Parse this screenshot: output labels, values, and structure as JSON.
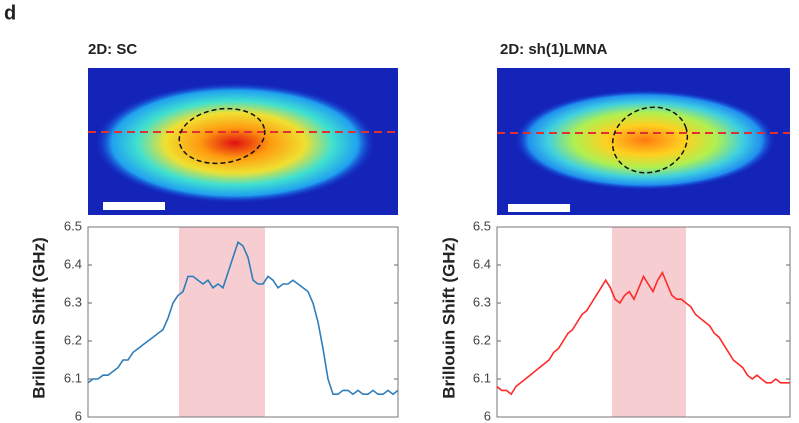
{
  "panel_label": "d",
  "chart_data": [
    {
      "type": "line",
      "title": "2D: SC",
      "y_label": "Brillouin Shift (GHz)",
      "color": "#2f7ebc",
      "values": [
        6.09,
        6.1,
        6.1,
        6.11,
        6.11,
        6.12,
        6.13,
        6.15,
        6.15,
        6.17,
        6.18,
        6.19,
        6.2,
        6.21,
        6.22,
        6.23,
        6.26,
        6.3,
        6.32,
        6.33,
        6.37,
        6.37,
        6.36,
        6.35,
        6.36,
        6.34,
        6.35,
        6.34,
        6.38,
        6.42,
        6.46,
        6.45,
        6.42,
        6.36,
        6.35,
        6.35,
        6.37,
        6.36,
        6.34,
        6.35,
        6.35,
        6.36,
        6.35,
        6.34,
        6.33,
        6.3,
        6.25,
        6.18,
        6.1,
        6.06,
        6.06,
        6.07,
        6.07,
        6.06,
        6.07,
        6.06,
        6.06,
        6.07,
        6.06,
        6.06,
        6.07,
        6.06,
        6.07
      ],
      "ylim": [
        6,
        6.5
      ],
      "yticks": [
        6,
        6.1,
        6.2,
        6.3,
        6.4,
        6.5
      ]
    },
    {
      "type": "line",
      "title": "2D: sh(1)LMNA",
      "y_label": "Brillouin Shift (GHz)",
      "color": "#ff2a2a",
      "values": [
        6.08,
        6.07,
        6.07,
        6.06,
        6.08,
        6.09,
        6.1,
        6.11,
        6.12,
        6.13,
        6.14,
        6.15,
        6.17,
        6.18,
        6.2,
        6.22,
        6.23,
        6.25,
        6.27,
        6.28,
        6.3,
        6.32,
        6.34,
        6.36,
        6.34,
        6.31,
        6.3,
        6.32,
        6.33,
        6.31,
        6.34,
        6.37,
        6.35,
        6.33,
        6.36,
        6.38,
        6.35,
        6.32,
        6.31,
        6.31,
        6.3,
        6.29,
        6.27,
        6.26,
        6.25,
        6.24,
        6.22,
        6.21,
        6.19,
        6.17,
        6.15,
        6.14,
        6.13,
        6.11,
        6.1,
        6.11,
        6.1,
        6.09,
        6.09,
        6.1,
        6.09,
        6.09,
        6.09
      ],
      "ylim": [
        6,
        6.5
      ],
      "yticks": [
        6,
        6.1,
        6.2,
        6.3,
        6.4,
        6.5
      ]
    }
  ]
}
